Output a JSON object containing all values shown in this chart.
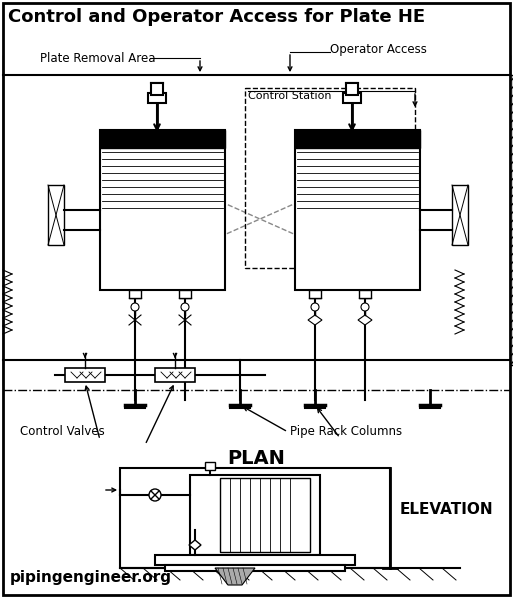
{
  "title": "Control and Operator Access for Plate HE",
  "footer": "pipingengineer.org",
  "plan_label": "PLAN",
  "elevation_label": "ELEVATION",
  "bg_color": "#ffffff",
  "annotations": {
    "plate_removal_area": "Plate Removal Area",
    "operator_access": "Operator Access",
    "control_station": "Control Station",
    "control_valves": "Control Valves",
    "pipe_rack_columns": "Pipe Rack Columns"
  },
  "figsize": [
    5.13,
    5.98
  ],
  "dpi": 100
}
